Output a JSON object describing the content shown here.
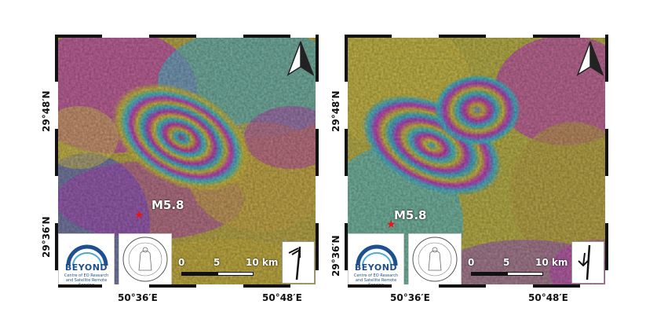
{
  "panels": [
    {
      "lat_labels": [
        "29°48′N",
        "29°36′N"
      ],
      "lon_labels": [
        "50°36′E",
        "50°48′E"
      ],
      "epicenter_label": "M5.8",
      "scale": {
        "labels": [
          "0",
          "5",
          "10 km"
        ]
      }
    },
    {
      "lat_labels": [
        "29°48′N",
        "29°36′N"
      ],
      "lon_labels": [
        "50°36′E",
        "50°48′E"
      ],
      "epicenter_label": "M5.8",
      "scale": {
        "labels": [
          "0",
          "5",
          "10 km"
        ]
      }
    }
  ],
  "logo": {
    "name": "BEYOND",
    "subtitle_line1": "Centre of EO Research",
    "subtitle_line2": "and Satellite Remote Sensing",
    "seal_icon": "noa-seal-icon"
  },
  "colors": {
    "fringe_magenta": "#c040c0",
    "fringe_cyan": "#38b8c8",
    "fringe_yellow": "#c8b840",
    "fringe_blue": "#5060c8",
    "epicenter_star": "#e8141a",
    "logo_blue": "#1e4f8f"
  },
  "icons": [
    "north-arrow-icon",
    "fault-motion-icon",
    "epicenter-star-icon"
  ]
}
